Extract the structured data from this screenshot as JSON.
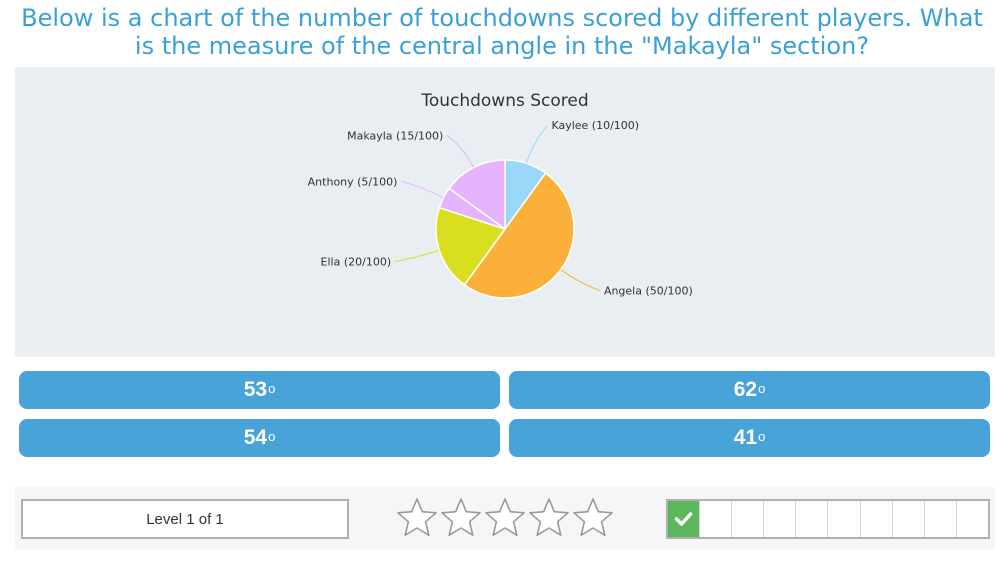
{
  "question": {
    "line1": "Below is a chart of the number of touchdowns scored by different players. What",
    "line2": "is the measure of the central angle in the \"Makayla\" section?"
  },
  "chart_data": {
    "type": "pie",
    "title": "Touchdowns Scored",
    "slices": [
      {
        "name": "Kaylee",
        "value": 10,
        "label": "Kaylee (10/100)",
        "color": "#9ad8fa"
      },
      {
        "name": "Angela",
        "value": 50,
        "label": "Angela (50/100)",
        "color": "#fbb03b"
      },
      {
        "name": "Ella",
        "value": 20,
        "label": "Ella (20/100)",
        "color": "#d9df1e"
      },
      {
        "name": "Anthony",
        "value": 5,
        "label": "Anthony (5/100)",
        "color": "#e6b3ff"
      },
      {
        "name": "Makayla",
        "value": 15,
        "label": "Makayla (15/100)",
        "color": "#e6b3ff"
      }
    ]
  },
  "answers": [
    {
      "value": "53",
      "unit": "o"
    },
    {
      "value": "62",
      "unit": "o"
    },
    {
      "value": "54",
      "unit": "o"
    },
    {
      "value": "41",
      "unit": "o"
    }
  ],
  "footer": {
    "level_text": "Level 1 of 1",
    "stars_total": 5,
    "stars_filled": 0,
    "progress_total": 10,
    "progress_done": 1
  },
  "colors": {
    "accent": "#3aa0d8",
    "button": "#48a3d8",
    "success": "#5cb85c"
  }
}
